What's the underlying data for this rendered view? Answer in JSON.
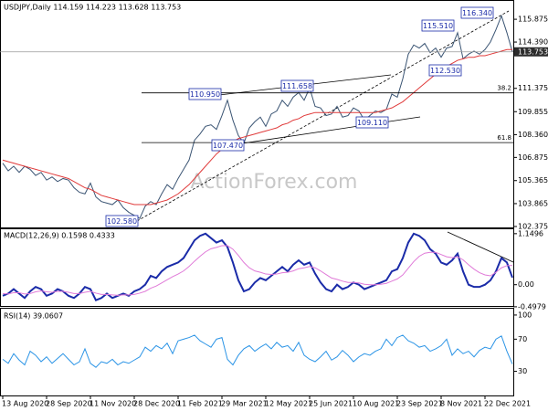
{
  "chart_data": [
    {
      "type": "line",
      "title": "USDJPY,Daily 114.159 114.223 113.628 113.753",
      "ylim": [
        102.255,
        117.13
      ],
      "yticks": [
        115.875,
        {
          "value": 114.39,
          "label": "114.390"
        },
        111.375,
        109.855,
        {
          "value": 108.36,
          "label": "108.360"
        },
        106.875,
        105.365,
        103.865,
        102.375
      ],
      "last_price": 113.753,
      "annotations": [
        "116.340",
        "115.510",
        "112.530",
        "111.658",
        "110.950",
        "109.110",
        "107.470",
        "102.580"
      ],
      "fib_levels": [
        {
          "label": "38.2",
          "value": 111.08
        },
        {
          "label": "61.8",
          "value": 107.84
        }
      ],
      "watermark": "ActionForex.com",
      "series": [
        {
          "color": "#3a5473",
          "values": [
            106.5,
            106.0,
            106.3,
            105.9,
            106.3,
            106.1,
            105.7,
            105.9,
            105.4,
            105.6,
            105.3,
            105.5,
            105.4,
            104.9,
            104.6,
            104.5,
            105.2,
            104.3,
            104.0,
            103.9,
            103.8,
            104.1,
            103.6,
            103.3,
            103.1,
            102.9,
            103.7,
            104.0,
            103.8,
            104.5,
            105.1,
            104.8,
            105.5,
            106.1,
            106.7,
            108.0,
            108.4,
            108.9,
            109.0,
            108.7,
            109.6,
            110.6,
            109.3,
            108.3,
            107.8,
            108.8,
            109.2,
            109.5,
            108.9,
            109.7,
            109.9,
            110.6,
            110.2,
            110.8,
            111.1,
            110.6,
            111.4,
            110.2,
            110.1,
            109.6,
            109.7,
            110.2,
            109.5,
            109.6,
            110.1,
            109.9,
            109.3,
            109.6,
            109.9,
            109.8,
            110.0,
            111.0,
            110.8,
            112.0,
            113.6,
            114.2,
            114.0,
            114.3,
            113.7,
            114.0,
            113.4,
            114.0,
            114.1,
            115.0,
            113.3,
            113.6,
            113.8,
            113.6,
            113.9,
            114.4,
            115.2,
            116.1,
            115.0,
            113.75
          ]
        },
        {
          "color": "#e03a3a",
          "values": [
            106.7,
            106.6,
            106.5,
            106.4,
            106.3,
            106.2,
            106.1,
            106.0,
            105.9,
            105.8,
            105.7,
            105.6,
            105.5,
            105.3,
            105.1,
            104.9,
            104.8,
            104.6,
            104.4,
            104.3,
            104.2,
            104.1,
            104.0,
            103.9,
            103.8,
            103.8,
            103.8,
            103.8,
            103.9,
            104.0,
            104.1,
            104.3,
            104.5,
            104.8,
            105.1,
            105.5,
            105.9,
            106.3,
            106.7,
            107.1,
            107.4,
            107.7,
            107.9,
            108.1,
            108.2,
            108.3,
            108.4,
            108.5,
            108.6,
            108.7,
            108.8,
            109.0,
            109.1,
            109.3,
            109.4,
            109.6,
            109.7,
            109.8,
            109.8,
            109.8,
            109.8,
            109.8,
            109.8,
            109.8,
            109.8,
            109.8,
            109.8,
            109.8,
            109.8,
            109.9,
            110.0,
            110.1,
            110.3,
            110.5,
            110.8,
            111.1,
            111.4,
            111.7,
            112.0,
            112.3,
            112.6,
            112.8,
            113.0,
            113.2,
            113.3,
            113.4,
            113.4,
            113.5,
            113.5,
            113.6,
            113.7,
            113.8,
            113.9,
            113.9
          ]
        }
      ]
    },
    {
      "type": "line",
      "title": "MACD(12,26,9) 0.1598 0.4333",
      "ylim": [
        -0.5,
        1.27
      ],
      "yticks": [
        1.1496,
        {
          "value": 0,
          "label": "0.00"
        },
        -0.4979
      ],
      "series": [
        {
          "color": "#1a2ba8",
          "values": [
            -0.25,
            -0.2,
            -0.1,
            -0.2,
            -0.3,
            -0.15,
            -0.05,
            -0.1,
            -0.25,
            -0.2,
            -0.1,
            -0.15,
            -0.25,
            -0.3,
            -0.2,
            -0.05,
            -0.1,
            -0.35,
            -0.3,
            -0.2,
            -0.3,
            -0.25,
            -0.2,
            -0.25,
            -0.15,
            -0.1,
            0.0,
            0.2,
            0.15,
            0.3,
            0.4,
            0.45,
            0.5,
            0.6,
            0.8,
            1.0,
            1.1,
            1.15,
            1.05,
            0.95,
            1.0,
            0.85,
            0.5,
            0.1,
            -0.15,
            -0.1,
            0.05,
            0.15,
            0.1,
            0.2,
            0.3,
            0.4,
            0.3,
            0.45,
            0.55,
            0.45,
            0.5,
            0.25,
            0.05,
            -0.1,
            -0.15,
            0.0,
            -0.1,
            -0.05,
            0.05,
            0.0,
            -0.1,
            -0.05,
            0.0,
            0.05,
            0.1,
            0.3,
            0.35,
            0.6,
            0.95,
            1.15,
            1.1,
            1.0,
            0.8,
            0.7,
            0.5,
            0.45,
            0.55,
            0.7,
            0.3,
            0.0,
            -0.05,
            -0.05,
            0.0,
            0.1,
            0.3,
            0.6,
            0.5,
            0.1598
          ]
        },
        {
          "color": "#e07ad8",
          "values": [
            -0.2,
            -0.21,
            -0.18,
            -0.18,
            -0.21,
            -0.2,
            -0.16,
            -0.14,
            -0.16,
            -0.17,
            -0.15,
            -0.15,
            -0.17,
            -0.2,
            -0.2,
            -0.17,
            -0.15,
            -0.19,
            -0.22,
            -0.22,
            -0.23,
            -0.24,
            -0.23,
            -0.23,
            -0.22,
            -0.19,
            -0.15,
            -0.08,
            -0.03,
            0.04,
            0.11,
            0.18,
            0.24,
            0.31,
            0.41,
            0.53,
            0.64,
            0.74,
            0.81,
            0.84,
            0.88,
            0.88,
            0.8,
            0.66,
            0.5,
            0.38,
            0.31,
            0.28,
            0.24,
            0.23,
            0.24,
            0.27,
            0.28,
            0.31,
            0.36,
            0.38,
            0.41,
            0.38,
            0.31,
            0.23,
            0.15,
            0.12,
            0.08,
            0.05,
            0.05,
            0.04,
            0.01,
            0.0,
            0.0,
            0.01,
            0.03,
            0.08,
            0.13,
            0.22,
            0.37,
            0.52,
            0.64,
            0.71,
            0.73,
            0.73,
            0.68,
            0.63,
            0.61,
            0.63,
            0.56,
            0.45,
            0.35,
            0.27,
            0.22,
            0.2,
            0.28,
            0.38,
            0.43,
            0.4333
          ]
        }
      ]
    },
    {
      "type": "line",
      "title": "RSI(14) 39.0607",
      "ylim": [
        0,
        109
      ],
      "yticks": [
        100,
        70,
        30
      ],
      "categories": [
        "13 Aug 2020",
        null,
        null,
        null,
        null,
        null,
        null,
        null,
        "28 Sep 2020",
        null,
        null,
        null,
        null,
        null,
        null,
        null,
        "11 Nov 2020",
        null,
        null,
        null,
        null,
        null,
        null,
        null,
        "28 Dec 2020",
        null,
        null,
        null,
        null,
        null,
        null,
        null,
        "11 Feb 2021",
        null,
        null,
        null,
        null,
        null,
        null,
        null,
        "29 Mar 2021",
        null,
        null,
        null,
        null,
        null,
        null,
        null,
        "12 May 2021",
        null,
        null,
        null,
        null,
        null,
        null,
        null,
        "25 Jun 2021",
        null,
        null,
        null,
        null,
        null,
        null,
        null,
        "10 Aug 2021",
        null,
        null,
        null,
        null,
        null,
        null,
        null,
        "23 Sep 2021",
        null,
        null,
        null,
        null,
        null,
        null,
        null,
        "8 Nov 2021",
        null,
        null,
        null,
        null,
        null,
        null,
        null,
        "22 Dec 2021",
        null,
        null,
        null,
        null,
        null
      ],
      "series": [
        {
          "color": "#2b94e6",
          "values": [
            45,
            40,
            52,
            44,
            38,
            55,
            50,
            42,
            48,
            40,
            46,
            52,
            45,
            38,
            42,
            58,
            40,
            35,
            42,
            40,
            45,
            38,
            42,
            40,
            44,
            48,
            60,
            55,
            62,
            58,
            65,
            52,
            68,
            70,
            72,
            75,
            68,
            64,
            60,
            70,
            72,
            45,
            38,
            50,
            58,
            62,
            55,
            60,
            64,
            58,
            66,
            60,
            62,
            55,
            66,
            50,
            45,
            42,
            48,
            55,
            44,
            48,
            56,
            50,
            42,
            48,
            52,
            50,
            55,
            58,
            70,
            62,
            72,
            75,
            68,
            65,
            60,
            62,
            55,
            58,
            62,
            70,
            50,
            58,
            52,
            55,
            48,
            56,
            60,
            58,
            70,
            74,
            55,
            39.0607
          ]
        }
      ]
    }
  ]
}
